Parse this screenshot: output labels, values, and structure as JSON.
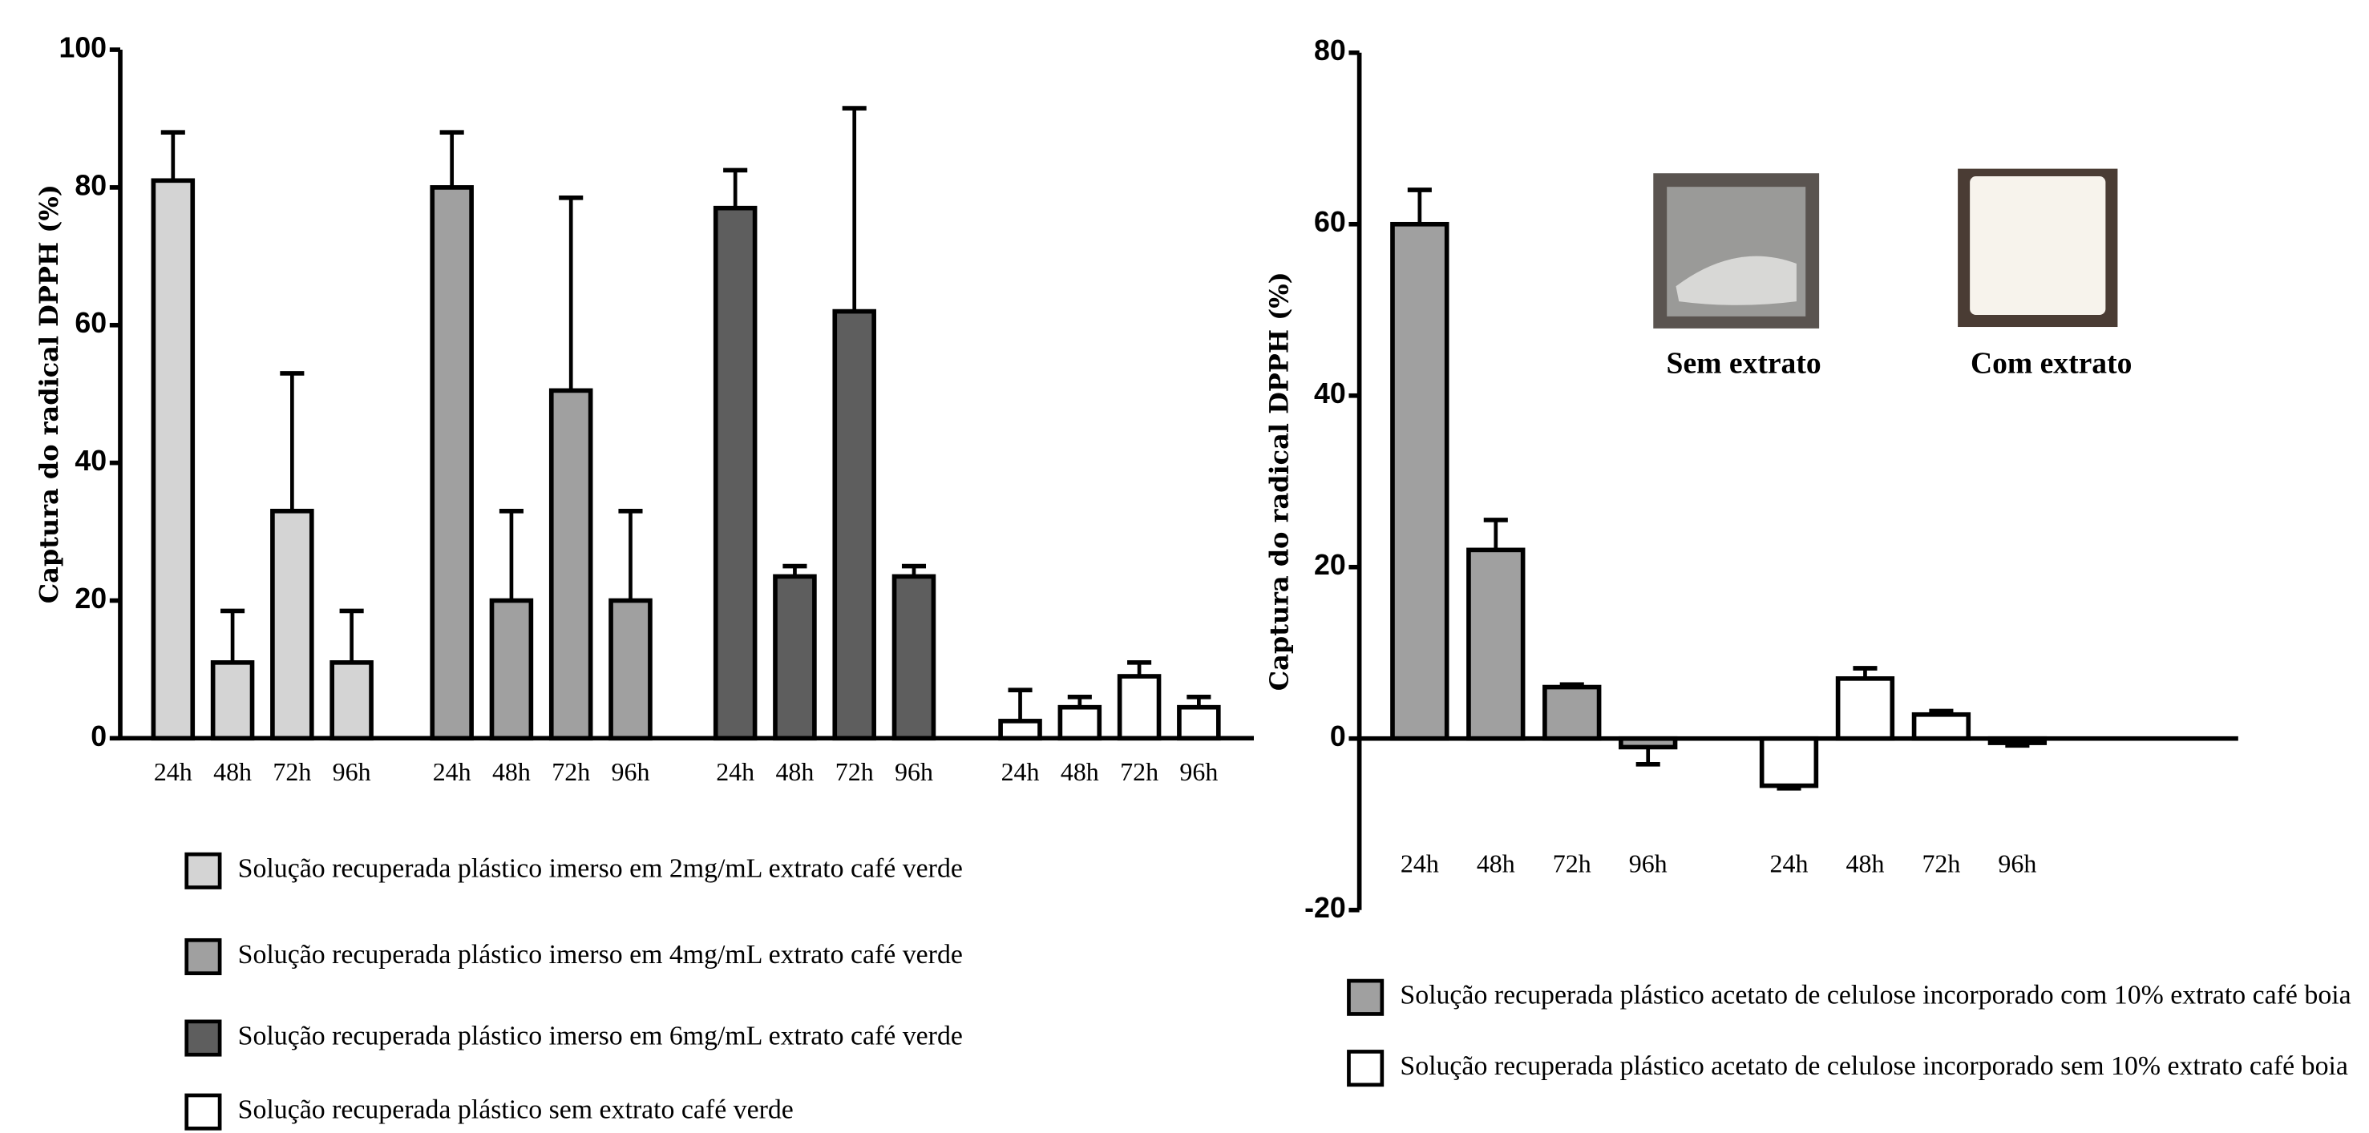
{
  "chart_data": [
    {
      "type": "bar",
      "y_label": "Captura do radical DPPH (%)",
      "categories": [
        "24h",
        "48h",
        "72h",
        "96h"
      ],
      "ylim": [
        0,
        100
      ],
      "yticks": [
        0,
        20,
        40,
        60,
        80,
        100
      ],
      "series": [
        {
          "name": "Solução recuperada plástico imerso em 2mg/mL extrato café verde",
          "color": "#d4d4d4",
          "values": [
            81,
            11,
            33,
            11
          ],
          "errors": [
            7,
            7.5,
            20,
            7.5
          ]
        },
        {
          "name": "Solução recuperada plástico imerso em 4mg/mL extrato café verde",
          "color": "#a0a0a0",
          "values": [
            80,
            20,
            50.5,
            20
          ],
          "errors": [
            8,
            13,
            28,
            13
          ]
        },
        {
          "name": "Solução recuperada plástico imerso em 6mg/mL extrato café verde",
          "color": "#5e5e5e",
          "values": [
            77,
            23.5,
            62,
            23.5
          ],
          "errors": [
            5.5,
            1.5,
            29.5,
            1.5
          ]
        },
        {
          "name": "Solução recuperada plástico sem extrato café verde",
          "color": "#ffffff",
          "values": [
            2.5,
            4.5,
            9,
            4.5
          ],
          "errors": [
            4.5,
            1.5,
            2,
            1.5
          ]
        }
      ]
    },
    {
      "type": "bar",
      "y_label": "Captura do radical DPPH (%)",
      "categories": [
        "24h",
        "48h",
        "72h",
        "96h"
      ],
      "ylim": [
        -20,
        80
      ],
      "yticks": [
        -20,
        0,
        20,
        40,
        60,
        80
      ],
      "annotations": [
        "Sem extrato",
        "Com extrato"
      ],
      "series": [
        {
          "name": "Solução recuperada plástico acetato de celulose incorporado com 10% extrato café boia",
          "color": "#a0a0a0",
          "values": [
            60,
            22,
            6,
            -1
          ],
          "errors": [
            4,
            3.5,
            0.3,
            2
          ]
        },
        {
          "name": "Solução recuperada plástico acetato de celulose incorporado sem 10% extrato café boia",
          "color": "#ffffff",
          "values": [
            -5.5,
            7,
            2.8,
            -0.5
          ],
          "errors": [
            0.3,
            1.2,
            0.4,
            0.3
          ]
        }
      ]
    }
  ]
}
